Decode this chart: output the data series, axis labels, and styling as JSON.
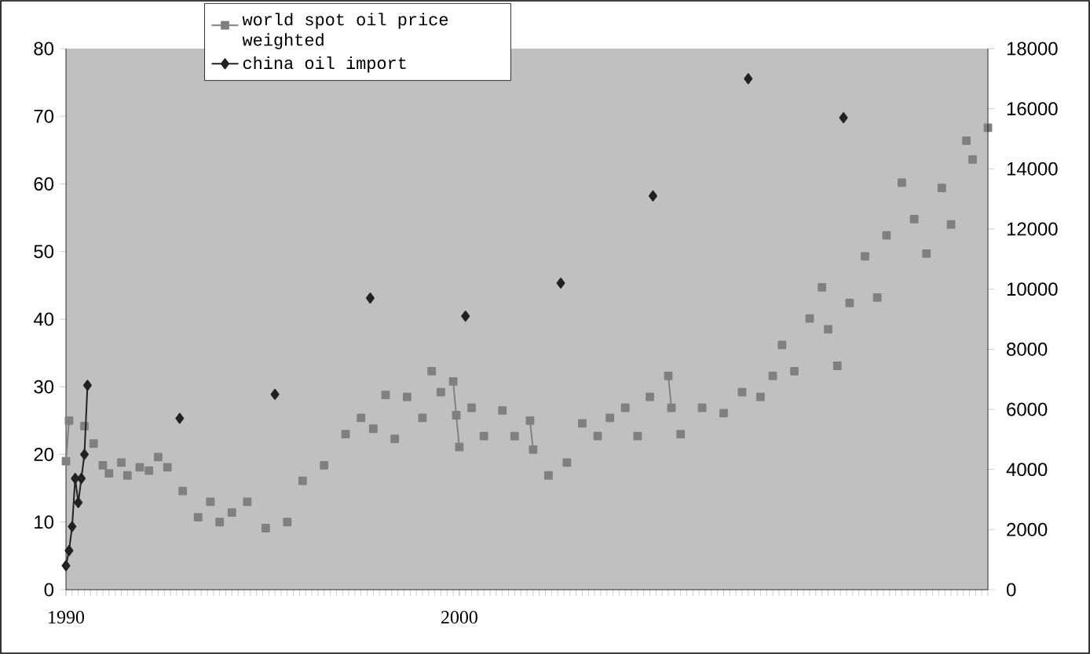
{
  "chart_data": {
    "type": "line",
    "categories": [
      "1990",
      null,
      null,
      null,
      null,
      null,
      null,
      null,
      null,
      null,
      null,
      null,
      null,
      null,
      null,
      null,
      null,
      null,
      null,
      null,
      null,
      null,
      null,
      null,
      null,
      null,
      null,
      null,
      null,
      null,
      null,
      null,
      null,
      null,
      null,
      null,
      null,
      null,
      null,
      null,
      null,
      null,
      null,
      null,
      null,
      null,
      null,
      null,
      null,
      null,
      null,
      null,
      null,
      null,
      null,
      null,
      null,
      null,
      null,
      null,
      null,
      null,
      null,
      null,
      null,
      null,
      null,
      null,
      null,
      null,
      null,
      null,
      null,
      null,
      null,
      null,
      null,
      null,
      null,
      null,
      null,
      null,
      null,
      null,
      null,
      null,
      null,
      null,
      null,
      null,
      null,
      null,
      null,
      null,
      null,
      null,
      null,
      null,
      null,
      null,
      null,
      null,
      null,
      null,
      null,
      null,
      null,
      null,
      null,
      null,
      null,
      null,
      null,
      null,
      null,
      null,
      null,
      null,
      null,
      null,
      null,
      null,
      null,
      null,
      null,
      null,
      null,
      null,
      "2000",
      null,
      null,
      null,
      null,
      null,
      null,
      null,
      null,
      null,
      null,
      null,
      null,
      null,
      null,
      null,
      null,
      null,
      null,
      null,
      null,
      null,
      null,
      null,
      null,
      null,
      null,
      null,
      null,
      null,
      null,
      null,
      null,
      null,
      null,
      null,
      null,
      null,
      null,
      null,
      null,
      null,
      null,
      null,
      null,
      null,
      null,
      null,
      null,
      null,
      null,
      null,
      null,
      null,
      null,
      null,
      null,
      null,
      null,
      null,
      null,
      null,
      null,
      null,
      null,
      null,
      null,
      null,
      null,
      null,
      null,
      null,
      null,
      null,
      null,
      null,
      null,
      null,
      null,
      null,
      null,
      null,
      null,
      null,
      null,
      null,
      null,
      null,
      null,
      null,
      null,
      null,
      null,
      null,
      null,
      null,
      null,
      null,
      null,
      null,
      null,
      null,
      null,
      null,
      null,
      null,
      null,
      null,
      null,
      null,
      null,
      null,
      null,
      null,
      null,
      null,
      null,
      null,
      null,
      null,
      null,
      null,
      null,
      null,
      null,
      null,
      null,
      null,
      null,
      null,
      null,
      null,
      null,
      null,
      null,
      null,
      null,
      null,
      null,
      null,
      null,
      null,
      null,
      null,
      null,
      null,
      null,
      null,
      null,
      null,
      null,
      null,
      null,
      null,
      null,
      null,
      null,
      null,
      null,
      null,
      null,
      null,
      null,
      null,
      null,
      null,
      null,
      null,
      null,
      null,
      null,
      null,
      null
    ],
    "ylim": [
      0,
      80
    ],
    "yticks": [
      0,
      10,
      20,
      30,
      40,
      50,
      60,
      70,
      80
    ],
    "y2lim": [
      0,
      18000
    ],
    "y2ticks": [
      0,
      2000,
      4000,
      6000,
      8000,
      10000,
      12000,
      14000,
      16000,
      18000
    ],
    "legend": "top",
    "line_style": "solid",
    "series": [
      {
        "name": "world spot oil price weighted",
        "color": "#808080",
        "marker": "square",
        "values": [
          19.0,
          25.0,
          null,
          null,
          null,
          null,
          24.2,
          null,
          null,
          21.6,
          null,
          null,
          18.4,
          null,
          17.2,
          null,
          null,
          null,
          18.8,
          null,
          16.9,
          null,
          null,
          null,
          18.1,
          null,
          null,
          17.6,
          null,
          null,
          19.6,
          null,
          null,
          18.1,
          null,
          null,
          null,
          null,
          14.6,
          null,
          null,
          null,
          null,
          10.7,
          null,
          null,
          null,
          13.0,
          null,
          null,
          10.0,
          null,
          null,
          null,
          11.4,
          null,
          null,
          null,
          null,
          13.0,
          null,
          null,
          null,
          null,
          null,
          9.1,
          null,
          null,
          null,
          null,
          null,
          null,
          10.0,
          null,
          null,
          null,
          null,
          16.1,
          null,
          null,
          null,
          null,
          null,
          null,
          18.4,
          null,
          null,
          null,
          null,
          null,
          null,
          23.0,
          null,
          null,
          null,
          null,
          25.4,
          null,
          null,
          null,
          23.8,
          null,
          null,
          null,
          28.8,
          null,
          null,
          22.3,
          null,
          null,
          null,
          28.5,
          null,
          null,
          null,
          null,
          25.4,
          null,
          null,
          32.3,
          null,
          null,
          29.2,
          null,
          null,
          null,
          30.8,
          25.8,
          21.1,
          null,
          null,
          null,
          26.9,
          null,
          null,
          null,
          22.7,
          null,
          null,
          null,
          null,
          null,
          26.5,
          null,
          null,
          null,
          22.7,
          null,
          null,
          null,
          null,
          25.0,
          20.7,
          null,
          null,
          null,
          null,
          16.9,
          null,
          null,
          null,
          null,
          null,
          18.8,
          null,
          null,
          null,
          null,
          24.6,
          null,
          null,
          null,
          null,
          22.7,
          null,
          null,
          null,
          25.4,
          null,
          null,
          null,
          null,
          26.9,
          null,
          null,
          null,
          22.7,
          null,
          null,
          null,
          28.5,
          null,
          null,
          null,
          null,
          null,
          31.6,
          26.9,
          null,
          null,
          23.0,
          null,
          null,
          null,
          null,
          null,
          null,
          26.9,
          null,
          null,
          null,
          null,
          null,
          null,
          26.1,
          null,
          null,
          null,
          null,
          null,
          29.2,
          null,
          null,
          null,
          null,
          null,
          28.5,
          null,
          null,
          null,
          31.6,
          null,
          null,
          36.2,
          null,
          null,
          null,
          32.3,
          null,
          null,
          null,
          null,
          40.1,
          null,
          null,
          null,
          44.7,
          null,
          38.5,
          null,
          null,
          33.1,
          null,
          null,
          null,
          42.4,
          null,
          null,
          null,
          null,
          49.3,
          null,
          null,
          null,
          43.2,
          null,
          null,
          52.4,
          null,
          null,
          null,
          null,
          60.2,
          null,
          null,
          null,
          54.8,
          null,
          null,
          null,
          49.7,
          null,
          null,
          null,
          null,
          59.4,
          null,
          null,
          54.0,
          null,
          null,
          null,
          null,
          66.4,
          null,
          63.6,
          null,
          null,
          null,
          null,
          68.3
        ]
      },
      {
        "name": "china oil import",
        "color": "#222222",
        "marker": "diamond",
        "axis": "y2",
        "values": [
          800,
          1300,
          2100,
          3700,
          2900,
          3700,
          4500,
          6800,
          null,
          null,
          null,
          null,
          null,
          null,
          null,
          null,
          null,
          null,
          null,
          null,
          null,
          null,
          null,
          null,
          null,
          null,
          null,
          null,
          null,
          null,
          null,
          null,
          null,
          null,
          null,
          null,
          null,
          5700,
          null,
          null,
          null,
          null,
          null,
          null,
          null,
          null,
          null,
          null,
          null,
          null,
          null,
          null,
          null,
          null,
          null,
          null,
          null,
          null,
          null,
          null,
          null,
          null,
          null,
          null,
          null,
          null,
          null,
          null,
          6500,
          null,
          null,
          null,
          null,
          null,
          null,
          null,
          null,
          null,
          null,
          null,
          null,
          null,
          null,
          null,
          null,
          null,
          null,
          null,
          null,
          null,
          null,
          null,
          null,
          null,
          null,
          null,
          null,
          null,
          null,
          9700,
          null,
          null,
          null,
          null,
          null,
          null,
          null,
          null,
          null,
          null,
          null,
          null,
          null,
          null,
          null,
          null,
          null,
          null,
          null,
          null,
          null,
          null,
          null,
          null,
          null,
          null,
          null,
          null,
          null,
          null,
          9100,
          null,
          null,
          null,
          null,
          null,
          null,
          null,
          null,
          null,
          null,
          null,
          null,
          null,
          null,
          null,
          null,
          null,
          null,
          null,
          null,
          null,
          null,
          null,
          null,
          null,
          null,
          null,
          null,
          null,
          null,
          10200,
          null,
          null,
          null,
          null,
          null,
          null,
          null,
          null,
          null,
          null,
          null,
          null,
          null,
          null,
          null,
          null,
          null,
          null,
          null,
          null,
          null,
          null,
          null,
          null,
          null,
          null,
          null,
          null,
          null,
          13100,
          null,
          null,
          null,
          null,
          null,
          null,
          null,
          null,
          null,
          null,
          null,
          null,
          null,
          null,
          null,
          null,
          null,
          null,
          null,
          null,
          null,
          null,
          null,
          null,
          null,
          null,
          null,
          null,
          null,
          null,
          17000,
          null,
          null,
          null,
          null,
          null,
          null,
          null,
          null,
          null,
          null,
          null,
          null,
          null,
          null,
          null,
          null,
          null,
          null,
          null,
          null,
          null,
          null,
          null,
          null,
          null,
          null,
          null,
          null,
          null,
          null,
          15700,
          null,
          null,
          null,
          null,
          null,
          null,
          null,
          null,
          null,
          null,
          null,
          null,
          null,
          null,
          null,
          null,
          null,
          null,
          null,
          null,
          null,
          null,
          null,
          null,
          null,
          null,
          null,
          null,
          null,
          null,
          null,
          null,
          null,
          null,
          null,
          null,
          null,
          null,
          null,
          null,
          null,
          null,
          null,
          null,
          null,
          null,
          null
        ]
      }
    ]
  }
}
